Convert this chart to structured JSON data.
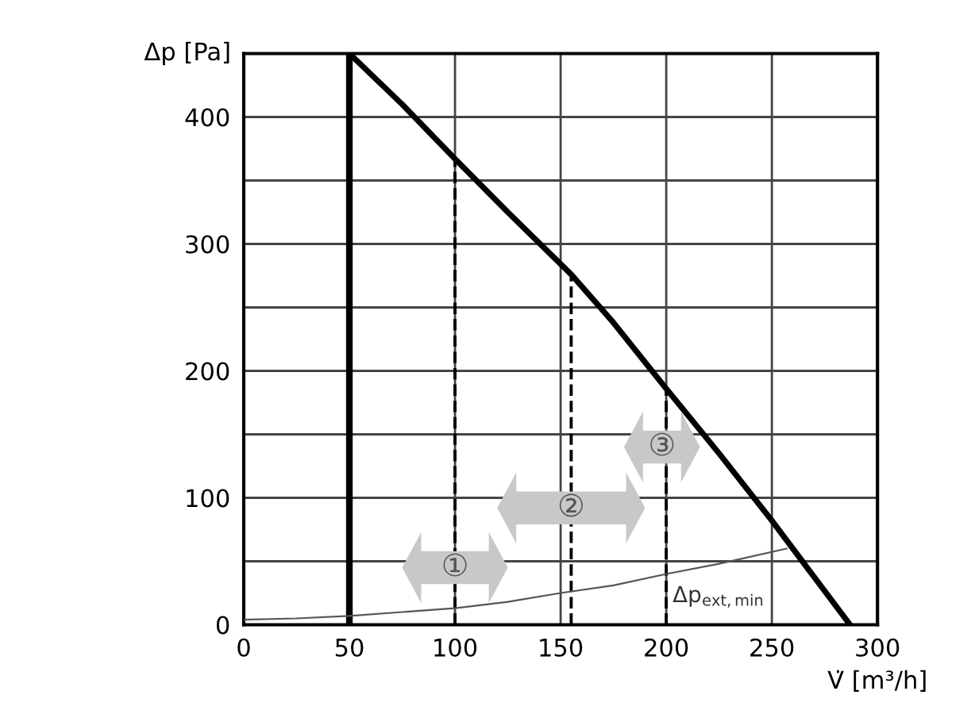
{
  "chart_data": {
    "type": "line",
    "xlabel": "V̇ [m³/h]",
    "ylabel": "Δp [Pa]",
    "xlim": [
      0,
      300
    ],
    "ylim": [
      0,
      450
    ],
    "xticks": [
      0,
      50,
      100,
      150,
      200,
      250,
      300
    ],
    "yticks": [
      0,
      {
        "value": 50,
        "label": null
      },
      100,
      {
        "value": 150,
        "label": null
      },
      200,
      {
        "value": 250,
        "label": null
      },
      300,
      {
        "value": 350,
        "label": null
      },
      400
    ],
    "grid": true,
    "legend": false,
    "marker": "none",
    "series": [
      {
        "color": "#000000",
        "x": [
          50,
          75,
          100,
          125,
          155,
          175,
          200,
          225,
          250,
          287
        ],
        "values": [
          450,
          410,
          367,
          325,
          276,
          238,
          186,
          135,
          82,
          0
        ]
      },
      {
        "color": "#555555",
        "x": [
          0,
          25,
          50,
          75,
          100,
          125,
          150,
          175,
          200,
          225,
          257
        ],
        "values": [
          4,
          5,
          7,
          10,
          13,
          18,
          25,
          31,
          40,
          48,
          60
        ]
      }
    ],
    "ref_lines": [
      {
        "axis": "x",
        "value": 50,
        "color": "#000000",
        "line_style": "solid"
      },
      {
        "axis": "x",
        "value": 100,
        "color": "#000000",
        "line_style": "dashed"
      },
      {
        "axis": "x",
        "value": 155,
        "color": "#000000",
        "line_style": "dashed"
      },
      {
        "axis": "x",
        "value": 200,
        "color": "#000000",
        "line_style": "dashed"
      }
    ],
    "annotations": [
      {
        "text": "①",
        "x": 100,
        "y": 45
      },
      {
        "text": "②",
        "x": 155,
        "y": 92
      },
      {
        "text": "③",
        "x": 198,
        "y": 140
      },
      {
        "text": "Δp$_{ext,min}$",
        "x": 203,
        "y": 22
      }
    ]
  }
}
